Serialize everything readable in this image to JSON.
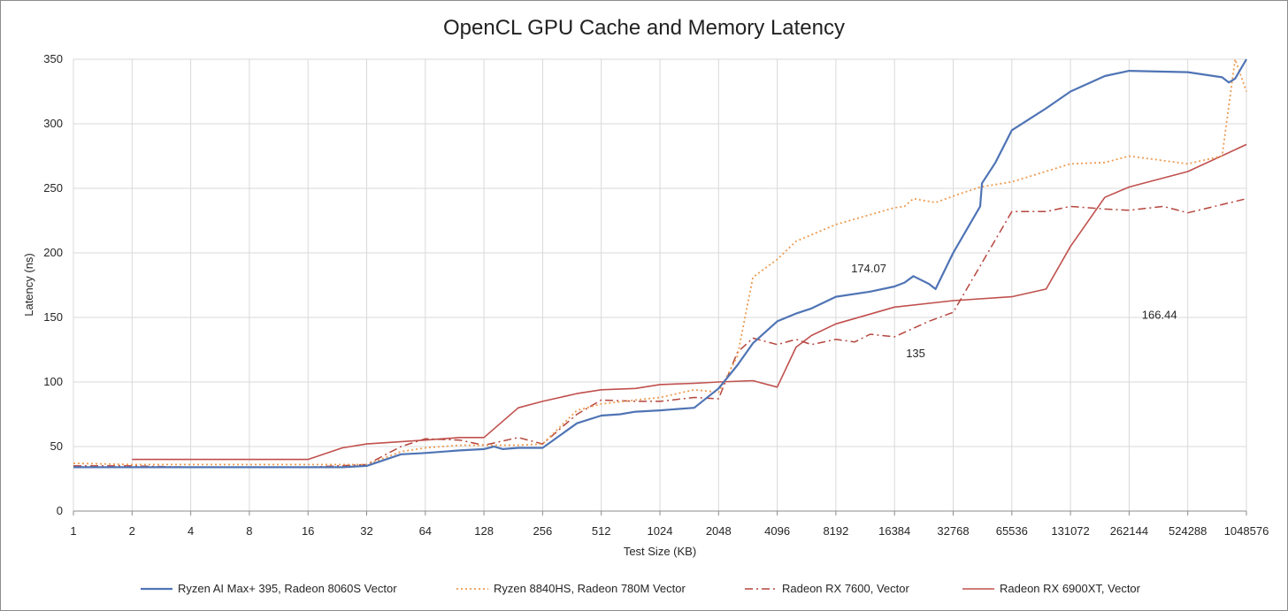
{
  "chart_data": {
    "type": "line",
    "title": "OpenCL GPU Cache and Memory Latency",
    "xlabel": "Test Size (KB)",
    "ylabel": "Latency (ns)",
    "x_scale": "log2",
    "xlim": [
      1,
      1048576
    ],
    "ylim": [
      0,
      350
    ],
    "x_ticks": [
      "1",
      "2",
      "4",
      "8",
      "16",
      "32",
      "64",
      "128",
      "256",
      "512",
      "1024",
      "2048",
      "4096",
      "8192",
      "16384",
      "32768",
      "65536",
      "131072",
      "262144",
      "524288",
      "1048576"
    ],
    "y_ticks": [
      0,
      50,
      100,
      150,
      200,
      250,
      300,
      350
    ],
    "grid": true,
    "legend_position": "bottom",
    "series": [
      {
        "name": "Ryzen AI Max+ 395, Radeon 8060S Vector",
        "color": "#4f74b5",
        "style": "solid",
        "points": [
          [
            1,
            34
          ],
          [
            2,
            34
          ],
          [
            4,
            34
          ],
          [
            8,
            34
          ],
          [
            16,
            34
          ],
          [
            24,
            34
          ],
          [
            32,
            35
          ],
          [
            48,
            44
          ],
          [
            64,
            45
          ],
          [
            96,
            47
          ],
          [
            128,
            48
          ],
          [
            144,
            50
          ],
          [
            160,
            48
          ],
          [
            192,
            49
          ],
          [
            256,
            49
          ],
          [
            384,
            68
          ],
          [
            512,
            74
          ],
          [
            640,
            75
          ],
          [
            768,
            77
          ],
          [
            1024,
            78
          ],
          [
            1536,
            80
          ],
          [
            2048,
            95
          ],
          [
            2560,
            113
          ],
          [
            3072,
            130
          ],
          [
            4096,
            147
          ],
          [
            5120,
            153
          ],
          [
            6144,
            157
          ],
          [
            8192,
            166
          ],
          [
            12288,
            170
          ],
          [
            16384,
            174
          ],
          [
            18432,
            177
          ],
          [
            20480,
            182
          ],
          [
            24576,
            176
          ],
          [
            26624,
            172
          ],
          [
            32768,
            200
          ],
          [
            45056,
            236
          ],
          [
            46080,
            254
          ],
          [
            54000,
            270
          ],
          [
            65536,
            295
          ],
          [
            98304,
            312
          ],
          [
            131072,
            325
          ],
          [
            196608,
            337
          ],
          [
            262144,
            341
          ],
          [
            524288,
            340
          ],
          [
            786432,
            336
          ],
          [
            851968,
            332
          ],
          [
            917504,
            335
          ],
          [
            1048576,
            350
          ]
        ]
      },
      {
        "name": "Ryzen 8840HS, Radeon 780M Vector",
        "color": "#ed9b50",
        "style": "dotted",
        "points": [
          [
            1,
            37
          ],
          [
            2,
            36
          ],
          [
            4,
            36
          ],
          [
            8,
            36
          ],
          [
            16,
            36
          ],
          [
            32,
            36
          ],
          [
            48,
            46
          ],
          [
            64,
            49
          ],
          [
            96,
            51
          ],
          [
            128,
            51
          ],
          [
            192,
            51
          ],
          [
            256,
            52
          ],
          [
            384,
            78
          ],
          [
            512,
            83
          ],
          [
            768,
            86
          ],
          [
            1024,
            88
          ],
          [
            1536,
            94
          ],
          [
            2048,
            92
          ],
          [
            2560,
            120
          ],
          [
            3072,
            181
          ],
          [
            4096,
            195
          ],
          [
            5120,
            209
          ],
          [
            8192,
            222
          ],
          [
            16384,
            235
          ],
          [
            18432,
            236
          ],
          [
            20480,
            242
          ],
          [
            26624,
            239
          ],
          [
            32768,
            244
          ],
          [
            45056,
            251
          ],
          [
            65536,
            255
          ],
          [
            131072,
            269
          ],
          [
            196608,
            270
          ],
          [
            262144,
            275
          ],
          [
            524288,
            269
          ],
          [
            786432,
            275
          ],
          [
            917504,
            350
          ],
          [
            1048576,
            325
          ]
        ]
      },
      {
        "name": "Radeon RX 7600, Vector",
        "color": "#b6463e",
        "style": "dashdot",
        "points": [
          [
            1,
            35
          ],
          [
            2,
            35
          ],
          [
            4,
            34
          ],
          [
            8,
            34
          ],
          [
            16,
            34
          ],
          [
            32,
            36
          ],
          [
            48,
            50
          ],
          [
            64,
            56
          ],
          [
            96,
            55
          ],
          [
            128,
            51
          ],
          [
            192,
            57
          ],
          [
            256,
            52
          ],
          [
            384,
            75
          ],
          [
            512,
            86
          ],
          [
            768,
            85
          ],
          [
            1024,
            85
          ],
          [
            1536,
            88
          ],
          [
            2048,
            87
          ],
          [
            2560,
            123
          ],
          [
            3072,
            134
          ],
          [
            4096,
            129
          ],
          [
            5120,
            133
          ],
          [
            6144,
            129
          ],
          [
            8192,
            133
          ],
          [
            10240,
            131
          ],
          [
            12288,
            137
          ],
          [
            16384,
            135
          ],
          [
            24576,
            147
          ],
          [
            32768,
            154
          ],
          [
            65536,
            232
          ],
          [
            98304,
            232
          ],
          [
            131072,
            236
          ],
          [
            196608,
            234
          ],
          [
            262144,
            233
          ],
          [
            393216,
            236
          ],
          [
            524288,
            231
          ],
          [
            1048576,
            242
          ]
        ]
      },
      {
        "name": "Radeon RX 6900XT, Vector",
        "color": "#c0504d",
        "style": "solid",
        "points": [
          [
            2,
            40
          ],
          [
            4,
            40
          ],
          [
            8,
            40
          ],
          [
            16,
            40
          ],
          [
            24,
            49
          ],
          [
            32,
            52
          ],
          [
            64,
            55
          ],
          [
            96,
            57
          ],
          [
            128,
            57
          ],
          [
            192,
            80
          ],
          [
            256,
            85
          ],
          [
            384,
            91
          ],
          [
            512,
            94
          ],
          [
            768,
            95
          ],
          [
            1024,
            98
          ],
          [
            1536,
            99
          ],
          [
            2048,
            100
          ],
          [
            3072,
            101
          ],
          [
            4096,
            96
          ],
          [
            5120,
            127
          ],
          [
            6144,
            136
          ],
          [
            8192,
            145
          ],
          [
            16384,
            158
          ],
          [
            32768,
            163
          ],
          [
            65536,
            166
          ],
          [
            98304,
            172
          ],
          [
            131072,
            205
          ],
          [
            196608,
            243
          ],
          [
            262144,
            251
          ],
          [
            524288,
            263
          ],
          [
            1048576,
            284
          ]
        ]
      }
    ],
    "annotations": [
      {
        "text": "174.07",
        "x": 16384,
        "y": 174
      },
      {
        "text": "166.44",
        "x": 65536,
        "y": 166
      },
      {
        "text": "135",
        "x": 16384,
        "y": 135
      }
    ]
  }
}
